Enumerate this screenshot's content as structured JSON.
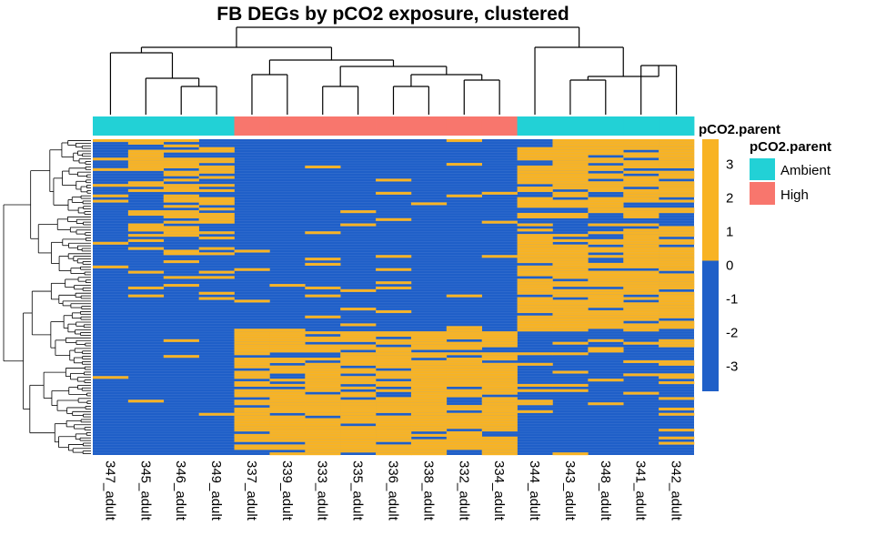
{
  "chart_data": {
    "type": "heatmap",
    "title": "FB DEGs by pCO2 exposure, clustered",
    "columns": [
      "347_adult",
      "345_adult",
      "346_adult",
      "349_adult",
      "337_adult",
      "339_adult",
      "333_adult",
      "335_adult",
      "336_adult",
      "338_adult",
      "332_adult",
      "334_adult",
      "344_adult",
      "343_adult",
      "348_adult",
      "341_adult",
      "342_adult"
    ],
    "annotation": {
      "name": "pCO2.parent",
      "values": [
        "Ambient",
        "Ambient",
        "Ambient",
        "Ambient",
        "High",
        "High",
        "High",
        "High",
        "High",
        "High",
        "High",
        "High",
        "Ambient",
        "Ambient",
        "Ambient",
        "Ambient",
        "Ambient"
      ],
      "legend": [
        {
          "label": "Ambient",
          "color": "#22D1D6"
        },
        {
          "label": "High",
          "color": "#F8766D"
        }
      ]
    },
    "color_scale": {
      "breaks": [
        3,
        2,
        1,
        0,
        -1,
        -2,
        -3
      ],
      "high_color": "#F8B323",
      "low_color": "#1F5FC8",
      "threshold": 0
    },
    "clusters": {
      "column_dendrogram": "yes",
      "row_dendrogram": "yes"
    }
  }
}
